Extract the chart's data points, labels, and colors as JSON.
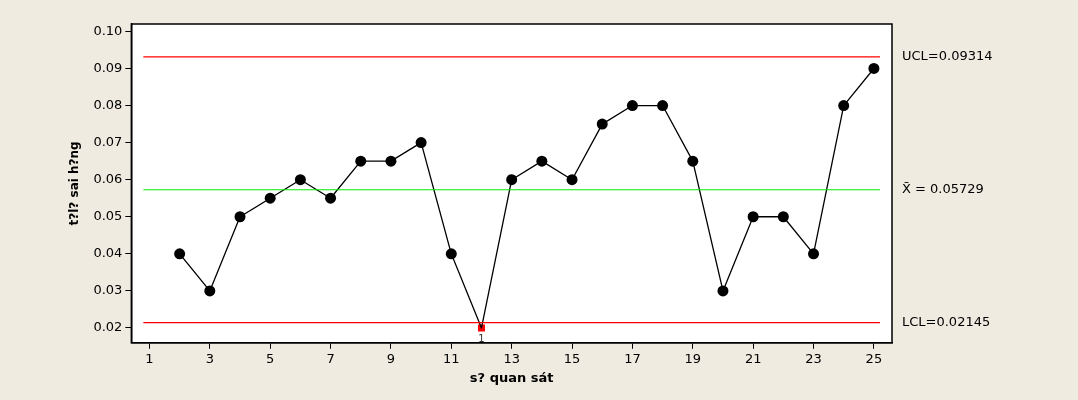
{
  "chart_data": {
    "type": "line",
    "xlabel": "s? quan sát",
    "ylabel": "t?l? sai h?ng",
    "xlim": [
      0.4,
      25.6
    ],
    "xticks": [
      1,
      3,
      5,
      7,
      9,
      11,
      13,
      15,
      17,
      19,
      21,
      23,
      25
    ],
    "ylim": [
      0.016,
      0.102
    ],
    "yticks": [
      {
        "value": 0.02,
        "label": "0.02"
      },
      {
        "value": 0.03,
        "label": "0.03"
      },
      {
        "value": 0.04,
        "label": "0.04"
      },
      {
        "value": 0.05,
        "label": "0.05"
      },
      {
        "value": 0.06,
        "label": "0.06"
      },
      {
        "value": 0.07,
        "label": "0.07"
      },
      {
        "value": 0.08,
        "label": "0.08"
      },
      {
        "value": 0.09,
        "label": "0.09"
      },
      {
        "value": 0.1,
        "label": "0.10"
      }
    ],
    "grid": false,
    "legend": false,
    "series": [
      {
        "type": "line",
        "marker": "none",
        "color": "#000000",
        "x": [
          2,
          3,
          4,
          5,
          6,
          7,
          8,
          9,
          10,
          11,
          12,
          13,
          14,
          15,
          16,
          17,
          18,
          19,
          20,
          21,
          22,
          23,
          24,
          25
        ],
        "values": [
          0.04,
          0.03,
          0.05,
          0.055,
          0.06,
          0.055,
          0.065,
          0.065,
          0.07,
          0.04,
          0.02,
          0.06,
          0.065,
          0.06,
          0.075,
          0.08,
          0.08,
          0.065,
          0.03,
          0.05,
          0.05,
          0.04,
          0.08,
          0.09
        ]
      },
      {
        "type": "scatter",
        "marker": "circle",
        "color": "#000000",
        "x": [
          2,
          3,
          4,
          5,
          6,
          7,
          8,
          9,
          10,
          11,
          13,
          14,
          15,
          16,
          17,
          18,
          19,
          20,
          21,
          22,
          23,
          24,
          25
        ],
        "values": [
          0.04,
          0.03,
          0.05,
          0.055,
          0.06,
          0.055,
          0.065,
          0.065,
          0.07,
          0.04,
          0.06,
          0.065,
          0.06,
          0.075,
          0.08,
          0.08,
          0.065,
          0.03,
          0.05,
          0.05,
          0.04,
          0.08,
          0.09
        ]
      },
      {
        "type": "scatter",
        "marker": "square",
        "color": "#ff0000",
        "x": [
          12
        ],
        "values": [
          0.02
        ]
      }
    ],
    "ref_lines": [
      {
        "axis": "y",
        "value": 0.09314,
        "label": "UCL=0.09314",
        "color": "#ff0000"
      },
      {
        "axis": "y",
        "value": 0.05729,
        "label": "X̄ = 0.05729",
        "color": "#00ee00"
      },
      {
        "axis": "y",
        "value": 0.02145,
        "label": "LCL=0.02145",
        "color": "#ff0000"
      }
    ],
    "annotations": [
      {
        "text": "1",
        "x": 12,
        "y": 0.02
      }
    ]
  }
}
